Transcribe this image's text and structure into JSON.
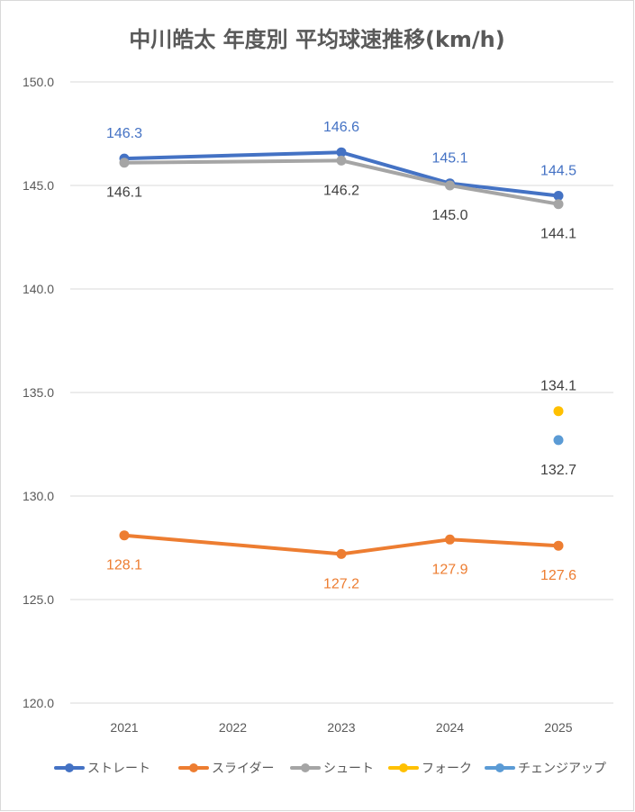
{
  "chart_data": {
    "type": "line",
    "title": "中川皓太 年度別 平均球速推移(km/h)",
    "categories": [
      "2021",
      "2022",
      "2023",
      "2024",
      "2025"
    ],
    "ylim": [
      120,
      150
    ],
    "yticks": [
      "120.0",
      "125.0",
      "130.0",
      "135.0",
      "140.0",
      "145.0",
      "150.0"
    ],
    "grid": true,
    "legend_position": "bottom",
    "series": [
      {
        "name": "ストレート",
        "color": "#4472c4",
        "values": [
          146.3,
          null,
          146.6,
          145.1,
          144.5
        ],
        "labels": [
          "146.3",
          "",
          "146.6",
          "145.1",
          "144.5"
        ],
        "label_pos": "above"
      },
      {
        "name": "スライダー",
        "color": "#ed7d31",
        "values": [
          128.1,
          null,
          127.2,
          127.9,
          127.6
        ],
        "labels": [
          "128.1",
          "",
          "127.2",
          "127.9",
          "127.6"
        ],
        "label_pos": "below"
      },
      {
        "name": "シュート",
        "color": "#a5a5a5",
        "label_color": "#404040",
        "values": [
          146.1,
          null,
          146.2,
          145.0,
          144.1
        ],
        "labels": [
          "146.1",
          "",
          "146.2",
          "145.0",
          "144.1"
        ],
        "label_pos": "below"
      },
      {
        "name": "フォーク",
        "color": "#ffc000",
        "label_color": "#404040",
        "values": [
          null,
          null,
          null,
          null,
          134.1
        ],
        "labels": [
          "",
          "",
          "",
          "",
          "134.1"
        ],
        "label_pos": "above"
      },
      {
        "name": "チェンジアップ",
        "color": "#5b9bd5",
        "label_color": "#404040",
        "values": [
          null,
          null,
          null,
          null,
          132.7
        ],
        "labels": [
          "",
          "",
          "",
          "",
          "132.7"
        ],
        "label_pos": "below"
      }
    ]
  }
}
